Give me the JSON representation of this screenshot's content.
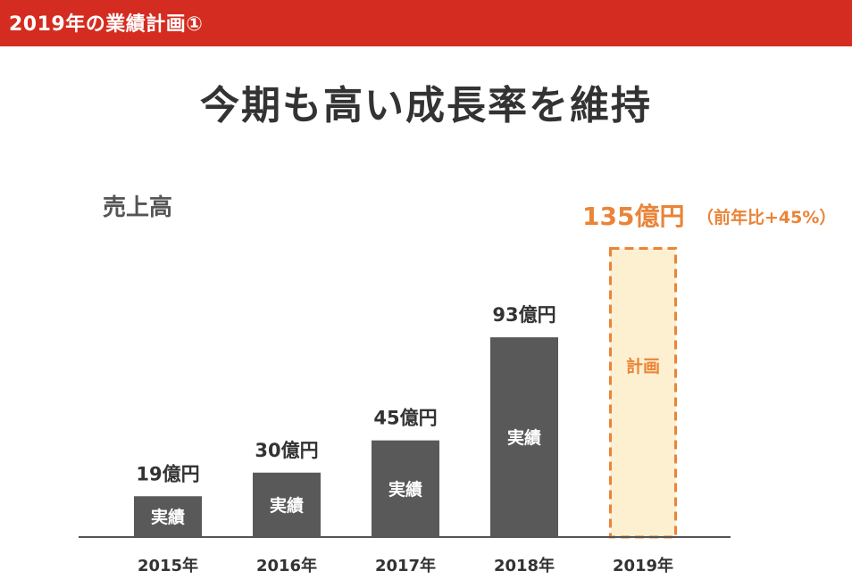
{
  "header": {
    "title": "2019年の業績計画①"
  },
  "headline": "今期も高い成長率を維持",
  "metric_label": "売上高",
  "colors": {
    "header_bg": "#d42c20",
    "actual_bar": "#595959",
    "plan_fill": "#fdf0d0",
    "plan_border": "#ea8438",
    "plan_text": "#ea8438",
    "text_dark": "#333333"
  },
  "chart_data": {
    "type": "bar",
    "categories": [
      "2015年",
      "2016年",
      "2017年",
      "2018年",
      "2019年"
    ],
    "values": [
      19,
      30,
      45,
      93,
      135
    ],
    "unit": "億円",
    "value_labels": [
      "19億円",
      "30億円",
      "45億円",
      "93億円",
      "135億円"
    ],
    "bar_labels": [
      "実績",
      "実績",
      "実績",
      "実績",
      "計画"
    ],
    "bar_kinds": [
      "actual",
      "actual",
      "actual",
      "actual",
      "plan"
    ],
    "growth_note": "（前年比+45%）",
    "ylim": [
      0,
      135
    ]
  }
}
